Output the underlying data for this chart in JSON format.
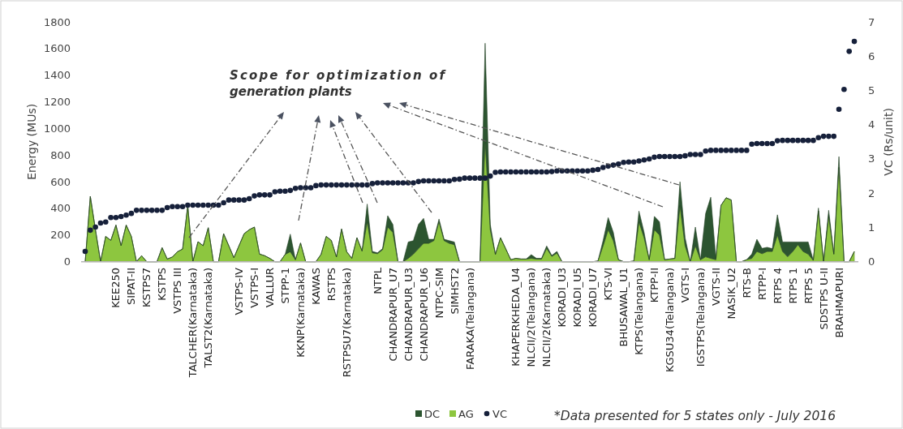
{
  "chart_data": {
    "type": "area",
    "stacked": true,
    "legend": "bottom",
    "ylabel": "Energy (MUs)",
    "y2label": "VC (Rs/unit)",
    "ylim": [
      0,
      1800
    ],
    "yticks": [
      0,
      200,
      400,
      600,
      800,
      1000,
      1200,
      1400,
      1600,
      1800
    ],
    "y2lim": [
      0,
      7
    ],
    "y2ticks": [
      0,
      1,
      2,
      3,
      4,
      5,
      6,
      7
    ],
    "annotations": [
      "Scope for optimization of generation plants",
      "*Data presented for 5 states only - July 2016"
    ],
    "categories": [
      null,
      null,
      null,
      null,
      null,
      null,
      "KEE250",
      null,
      null,
      "SIPAT-II",
      null,
      null,
      "KSTPS7",
      null,
      null,
      "KSTPS",
      null,
      null,
      "VSTPS III",
      null,
      null,
      "TALCHER(Karnataka)",
      null,
      null,
      "TALST2(Karnataka)",
      null,
      null,
      null,
      null,
      null,
      "VSTPS-IV",
      null,
      null,
      "VSTPS-I",
      null,
      null,
      "VALLUR",
      null,
      null,
      "STPP-1",
      null,
      null,
      "KKNP(Karnataka)",
      null,
      null,
      "KAWAS",
      null,
      null,
      "RSTPS",
      null,
      null,
      "RSTPSU7(Karnataka)",
      null,
      null,
      null,
      null,
      null,
      "NTPL",
      null,
      null,
      "CHANDRAPUR_U7",
      null,
      null,
      "CHANDRAPUR_U3",
      null,
      null,
      "CHANDRAPUR_U6",
      null,
      null,
      "NTPC-SIM",
      null,
      null,
      "SIMHST2",
      null,
      null,
      "FARAKA(Telangana)",
      null,
      null,
      null,
      null,
      null,
      null,
      null,
      null,
      "KHAPERKHEDA_U4",
      null,
      null,
      "NLCII/2(Telangana)",
      null,
      null,
      "NLCII/2(Karnataka)",
      null,
      null,
      "KORADI_U3",
      null,
      null,
      "KORADI_U5",
      null,
      null,
      "KORADI_U7",
      null,
      null,
      "KTS-VI",
      null,
      null,
      "BHUSAWAL_U1",
      null,
      null,
      "KTPS(Telangana)",
      null,
      null,
      "KTPP-II",
      null,
      null,
      "KGSU34(Telangana)",
      null,
      null,
      "VGTS-I",
      null,
      null,
      "IGSTPS(Telangana)",
      null,
      null,
      "VGTS-II",
      null,
      null,
      "NASIK_U2",
      null,
      null,
      "RTS-B",
      null,
      null,
      "RTPP-I",
      null,
      null,
      "RTPS 4",
      null,
      null,
      "RTPS 1",
      null,
      null,
      "RTPS 5",
      null,
      null,
      "SDSTPS U-II",
      null,
      null,
      "BRAHMAPURI",
      null,
      null,
      null
    ],
    "series": [
      {
        "name": "AG",
        "color": "#8dc63f",
        "values": [
          0,
          490,
          240,
          0,
          190,
          160,
          275,
          120,
          275,
          190,
          0,
          45,
          0,
          0,
          0,
          105,
          20,
          35,
          75,
          95,
          420,
          0,
          150,
          120,
          255,
          0,
          0,
          210,
          120,
          30,
          120,
          210,
          240,
          260,
          57,
          45,
          25,
          0,
          0,
          55,
          75,
          15,
          140,
          0,
          0,
          0,
          55,
          190,
          160,
          35,
          245,
          75,
          25,
          180,
          80,
          300,
          67,
          60,
          90,
          260,
          220,
          0,
          0,
          25,
          57,
          98,
          138,
          138,
          158,
          300,
          158,
          138,
          128,
          0,
          0,
          0,
          0,
          0,
          910,
          240,
          55,
          180,
          98,
          15,
          25,
          20,
          20,
          25,
          20,
          20,
          100,
          40,
          65,
          0,
          0,
          0,
          0,
          0,
          0,
          0,
          5,
          118,
          240,
          158,
          15,
          0,
          0,
          5,
          300,
          180,
          15,
          240,
          200,
          15,
          20,
          25,
          420,
          120,
          0,
          120,
          15,
          37,
          25,
          15,
          423,
          480,
          463,
          0,
          0,
          15,
          25,
          77,
          60,
          77,
          77,
          200,
          77,
          37,
          77,
          128,
          77,
          57,
          10,
          382,
          0,
          340,
          57,
          708,
          0,
          0,
          77
        ]
      },
      {
        "name": "DC",
        "color": "#2c5530",
        "values": [
          0,
          0,
          0,
          0,
          0,
          0,
          0,
          0,
          0,
          0,
          0,
          0,
          0,
          0,
          0,
          0,
          0,
          0,
          0,
          0,
          0,
          0,
          0,
          0,
          0,
          0,
          0,
          0,
          0,
          0,
          0,
          0,
          0,
          0,
          0,
          0,
          0,
          0,
          0,
          0,
          132,
          0,
          0,
          0,
          0,
          0,
          0,
          0,
          0,
          0,
          0,
          0,
          0,
          0,
          0,
          133,
          10,
          7,
          8,
          85,
          60,
          0,
          0,
          123,
          101,
          182,
          187,
          30,
          10,
          20,
          10,
          20,
          20,
          0,
          0,
          0,
          0,
          0,
          730,
          40,
          0,
          0,
          0,
          0,
          0,
          0,
          0,
          28,
          5,
          5,
          18,
          7,
          12,
          0,
          0,
          0,
          0,
          0,
          0,
          0,
          0,
          40,
          91,
          62,
          0,
          0,
          0,
          0,
          80,
          40,
          0,
          100,
          100,
          0,
          0,
          0,
          180,
          60,
          0,
          140,
          0,
          325,
          459,
          10,
          0,
          0,
          0,
          0,
          0,
          0,
          32,
          91,
          40,
          31,
          21,
          152,
          71,
          111,
          71,
          20,
          71,
          91,
          0,
          21,
          0,
          46,
          0,
          81,
          0,
          0,
          0
        ]
      },
      {
        "name": "VC",
        "type": "scatter",
        "axis": "y2",
        "marker": "circle",
        "color": "#16203a",
        "values": [
          0.3,
          0.92,
          1.01,
          1.13,
          1.16,
          1.29,
          1.29,
          1.32,
          1.36,
          1.41,
          1.5,
          1.5,
          1.5,
          1.5,
          1.5,
          1.5,
          1.58,
          1.61,
          1.61,
          1.61,
          1.65,
          1.65,
          1.65,
          1.65,
          1.65,
          1.65,
          1.65,
          1.72,
          1.8,
          1.8,
          1.8,
          1.8,
          1.84,
          1.92,
          1.95,
          1.95,
          1.95,
          2.04,
          2.06,
          2.06,
          2.08,
          2.14,
          2.16,
          2.16,
          2.16,
          2.22,
          2.24,
          2.24,
          2.24,
          2.24,
          2.24,
          2.24,
          2.24,
          2.24,
          2.24,
          2.24,
          2.28,
          2.3,
          2.3,
          2.3,
          2.3,
          2.3,
          2.3,
          2.3,
          2.3,
          2.34,
          2.36,
          2.36,
          2.36,
          2.36,
          2.36,
          2.36,
          2.4,
          2.41,
          2.44,
          2.44,
          2.44,
          2.44,
          2.44,
          2.5,
          2.61,
          2.62,
          2.62,
          2.62,
          2.62,
          2.62,
          2.62,
          2.62,
          2.62,
          2.62,
          2.62,
          2.63,
          2.65,
          2.65,
          2.65,
          2.65,
          2.65,
          2.65,
          2.65,
          2.67,
          2.69,
          2.75,
          2.79,
          2.82,
          2.85,
          2.9,
          2.91,
          2.91,
          2.94,
          2.97,
          3.0,
          3.05,
          3.07,
          3.07,
          3.07,
          3.07,
          3.07,
          3.09,
          3.13,
          3.13,
          3.13,
          3.23,
          3.25,
          3.25,
          3.25,
          3.25,
          3.25,
          3.25,
          3.25,
          3.25,
          3.43,
          3.45,
          3.45,
          3.45,
          3.45,
          3.53,
          3.54,
          3.54,
          3.54,
          3.54,
          3.54,
          3.54,
          3.54,
          3.62,
          3.66,
          3.66,
          3.66,
          4.45,
          5.03,
          6.14,
          6.43
        ]
      }
    ]
  }
}
